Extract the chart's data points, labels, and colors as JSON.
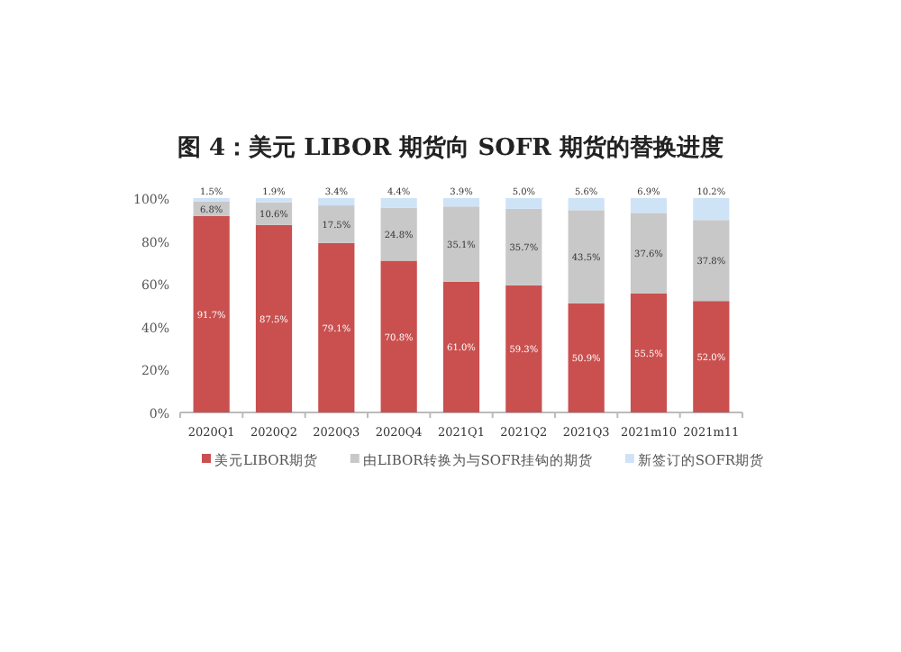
{
  "chart_data": {
    "type": "bar",
    "stacked": true,
    "title": "图 4：美元 LIBOR 期货向 SOFR 期货的替换进度",
    "categories": [
      "2020Q1",
      "2020Q2",
      "2020Q3",
      "2020Q4",
      "2021Q1",
      "2021Q2",
      "2021Q3",
      "2021m10",
      "2021m11"
    ],
    "series": [
      {
        "name": "美元LIBOR期货",
        "color": "#c9504f",
        "values": [
          91.7,
          87.5,
          79.1,
          70.8,
          61.0,
          59.3,
          50.9,
          55.5,
          52.0
        ],
        "value_labels": [
          "91.7%",
          "87.5%",
          "79.1%",
          "70.8%",
          "61.0%",
          "59.3%",
          "50.9%",
          "55.5%",
          "52.0%"
        ]
      },
      {
        "name": "由LIBOR转换为与SOFR挂钩的期货",
        "color": "#c8c8c8",
        "values": [
          6.8,
          10.6,
          17.5,
          24.8,
          35.1,
          35.7,
          43.5,
          37.6,
          37.8
        ],
        "value_labels": [
          "6.8%",
          "10.6%",
          "17.5%",
          "24.8%",
          "35.1%",
          "35.7%",
          "43.5%",
          "37.6%",
          "37.8%"
        ]
      },
      {
        "name": "新签订的SOFR期货",
        "color": "#cfe3f7",
        "values": [
          1.5,
          1.9,
          3.4,
          4.4,
          3.9,
          5.0,
          5.6,
          6.9,
          10.2
        ],
        "value_labels": [
          "1.5%",
          "1.9%",
          "3.4%",
          "4.4%",
          "3.9%",
          "5.0%",
          "5.6%",
          "6.9%",
          "10.2%"
        ]
      }
    ],
    "ylim": [
      0,
      100
    ],
    "yticks": [
      {
        "value": 0,
        "label": "0%"
      },
      {
        "value": 20,
        "label": "20%"
      },
      {
        "value": 40,
        "label": "40%"
      },
      {
        "value": 60,
        "label": "60%"
      },
      {
        "value": 80,
        "label": "80%"
      },
      {
        "value": 100,
        "label": "100%"
      }
    ],
    "legend": "bottom"
  }
}
